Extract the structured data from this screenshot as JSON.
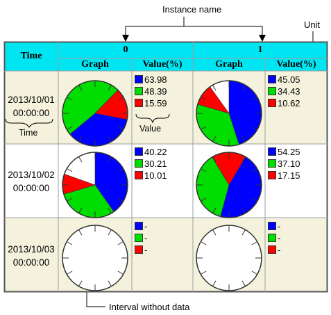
{
  "annotations": {
    "instance_name": "Instance name",
    "unit": "Unit",
    "value": "Value",
    "time": "Time",
    "interval_without_data": "Interval without data"
  },
  "header": {
    "time": "Time",
    "instances": [
      "0",
      "1"
    ],
    "graph": "Graph",
    "value": "Value(%)"
  },
  "colors": {
    "blue": "#0000ff",
    "green": "#00dd00",
    "red": "#ff0000",
    "header": "#00e5f2",
    "row_alt": "#f4f2dc"
  },
  "chart_data": [
    {
      "type": "pie",
      "time": "2013/10/01 00:00:00",
      "instance": "0",
      "series": [
        {
          "name": "blue",
          "value": 63.98
        },
        {
          "name": "green",
          "value": 48.39
        },
        {
          "name": "red",
          "value": 15.59
        }
      ],
      "labels": [
        "63.98",
        "48.39",
        "15.59"
      ]
    },
    {
      "type": "pie",
      "time": "2013/10/01 00:00:00",
      "instance": "1",
      "series": [
        {
          "name": "blue",
          "value": 45.05
        },
        {
          "name": "green",
          "value": 34.43
        },
        {
          "name": "red",
          "value": 10.62
        }
      ],
      "labels": [
        "45.05",
        "34.43",
        "10.62"
      ]
    },
    {
      "type": "pie",
      "time": "2013/10/02 00:00:00",
      "instance": "0",
      "series": [
        {
          "name": "blue",
          "value": 40.22
        },
        {
          "name": "green",
          "value": 30.21
        },
        {
          "name": "red",
          "value": 10.01
        }
      ],
      "labels": [
        "40.22",
        "30.21",
        "10.01"
      ]
    },
    {
      "type": "pie",
      "time": "2013/10/02 00:00:00",
      "instance": "1",
      "series": [
        {
          "name": "blue",
          "value": 54.25
        },
        {
          "name": "green",
          "value": 37.1
        },
        {
          "name": "red",
          "value": 17.15
        }
      ],
      "labels": [
        "54.25",
        "37.10",
        "17.15"
      ]
    },
    {
      "type": "pie",
      "time": "2013/10/03 00:00:00",
      "instance": "0",
      "series": [],
      "labels": [
        "-",
        "-",
        "-"
      ]
    },
    {
      "type": "pie",
      "time": "2013/10/03 00:00:00",
      "instance": "1",
      "series": [],
      "labels": [
        "-",
        "-",
        "-"
      ]
    }
  ],
  "rows": [
    {
      "date": "2013/10/01",
      "clock": "00:00:00"
    },
    {
      "date": "2013/10/02",
      "clock": "00:00:00"
    },
    {
      "date": "2013/10/03",
      "clock": "00:00:00"
    }
  ]
}
